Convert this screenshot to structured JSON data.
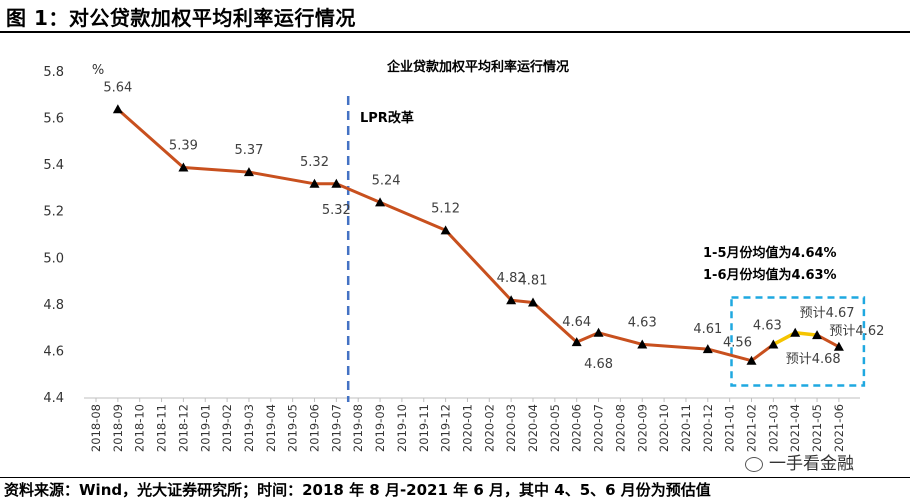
{
  "figure_title": "图 1：对公贷款加权平均利率运行情况",
  "footer": "资料来源：Wind，光大证券研究所；时间：2018 年 8 月-2021 年 6 月，其中 4、5、6 月份为预估值",
  "watermark": "一手看金融",
  "colors": {
    "line": "#C8501E",
    "forecast_line": "#F5C400",
    "marker": "#000000",
    "lpr_line": "#4472C4",
    "box": "#1FA8E0"
  },
  "chart_data": {
    "type": "line",
    "title": "企业贷款加权平均利率运行情况",
    "unit_label": "%",
    "ylim": [
      4.4,
      5.8
    ],
    "yticks": [
      "4.4",
      "4.6",
      "4.8",
      "5.0",
      "5.2",
      "5.4",
      "5.6",
      "5.8"
    ],
    "categories": [
      "2018-08",
      "2018-09",
      "2018-10",
      "2018-11",
      "2018-12",
      "2019-01",
      "2019-02",
      "2019-03",
      "2019-04",
      "2019-05",
      "2019-06",
      "2019-07",
      "2019-08",
      "2019-09",
      "2019-10",
      "2019-11",
      "2019-12",
      "2020-01",
      "2020-02",
      "2020-03",
      "2020-04",
      "2020-05",
      "2020-06",
      "2020-07",
      "2020-08",
      "2020-09",
      "2020-10",
      "2020-11",
      "2020-12",
      "2021-01",
      "2021-02",
      "2021-03",
      "2021-04",
      "2021-05",
      "2021-06"
    ],
    "points": [
      {
        "x": "2018-09",
        "y": 5.64,
        "label": "5.64"
      },
      {
        "x": "2018-12",
        "y": 5.39,
        "label": "5.39"
      },
      {
        "x": "2019-03",
        "y": 5.37,
        "label": "5.37"
      },
      {
        "x": "2019-06",
        "y": 5.32,
        "label": "5.32"
      },
      {
        "x": "2019-07",
        "y": 5.32,
        "label": "5.32"
      },
      {
        "x": "2019-09",
        "y": 5.24,
        "label": "5.24"
      },
      {
        "x": "2019-12",
        "y": 5.12,
        "label": "5.12"
      },
      {
        "x": "2020-03",
        "y": 4.82,
        "label": "4.82"
      },
      {
        "x": "2020-04",
        "y": 4.81,
        "label": "4.81"
      },
      {
        "x": "2020-06",
        "y": 4.64,
        "label": "4.64"
      },
      {
        "x": "2020-07",
        "y": 4.68,
        "label": "4.68"
      },
      {
        "x": "2020-09",
        "y": 4.63,
        "label": "4.63"
      },
      {
        "x": "2020-12",
        "y": 4.61,
        "label": "4.61"
      },
      {
        "x": "2021-02",
        "y": 4.56,
        "label": "4.56"
      },
      {
        "x": "2021-03",
        "y": 4.63,
        "label": "4.63"
      },
      {
        "x": "2021-04",
        "y": 4.68,
        "label": "预计4.68"
      },
      {
        "x": "2021-05",
        "y": 4.67,
        "label": "预计4.67"
      },
      {
        "x": "2021-06",
        "y": 4.62,
        "label": "预计4.62"
      }
    ],
    "forecast_from": "2021-03",
    "lpr_reform_at": "2019-08",
    "lpr_label": "LPR改革",
    "annotations": [
      "1-5月份均值为4.64%",
      "1-6月份均值为4.63%"
    ],
    "grid": false
  }
}
